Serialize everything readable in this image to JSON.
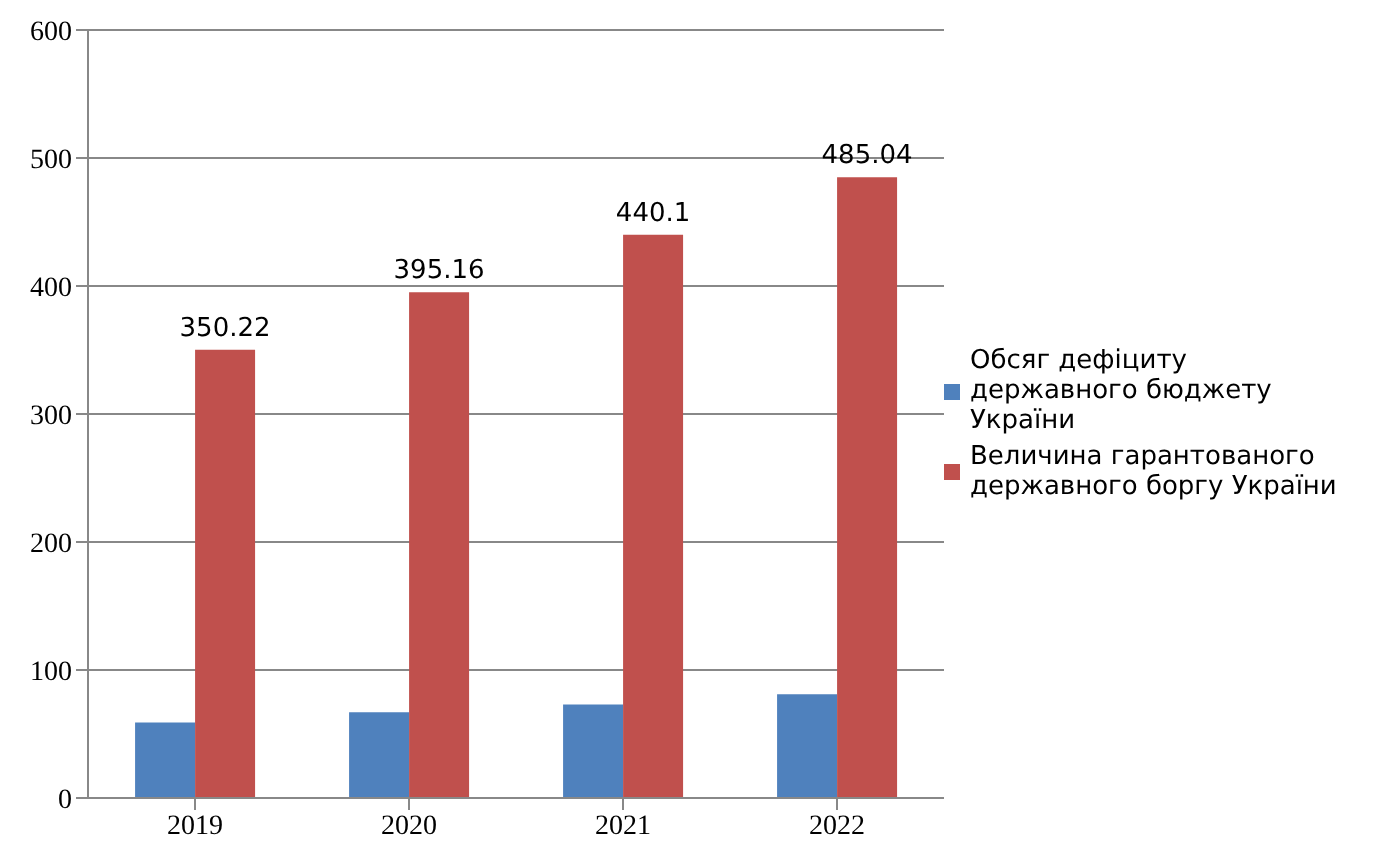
{
  "chart_data": {
    "type": "bar",
    "categories": [
      "2019",
      "2020",
      "2021",
      "2022"
    ],
    "series": [
      {
        "name": "Обсяг дефіциту державного бюджету України",
        "color": "#4f81bd",
        "values": [
          59,
          67,
          73,
          81
        ]
      },
      {
        "name": "Величина гарантованого державного боргу України",
        "color": "#c0504d",
        "values": [
          350.22,
          395.16,
          440.1,
          485.04
        ],
        "value_labels": [
          "350.22",
          "395.16",
          "440.1",
          "485.04"
        ]
      }
    ],
    "ylim": [
      0,
      600
    ],
    "yticks": [
      0,
      100,
      200,
      300,
      400,
      500,
      600
    ],
    "grid": "y",
    "legend": "right"
  }
}
